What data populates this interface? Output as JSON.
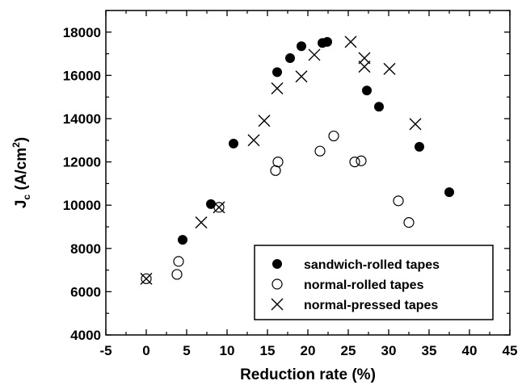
{
  "chart_data": {
    "type": "scatter",
    "title": "",
    "xlabel": "Reduction rate (%)",
    "ylabel": {
      "main": "J",
      "sub": "c",
      "open": " (A/cm",
      "sup": "2",
      "close": ")"
    },
    "xlim": [
      -5,
      45
    ],
    "ylim": [
      4000,
      19000
    ],
    "x_ticks": [
      -5,
      0,
      5,
      10,
      15,
      20,
      25,
      30,
      35,
      40,
      45
    ],
    "y_ticks": [
      4000,
      6000,
      8000,
      10000,
      12000,
      14000,
      16000,
      18000
    ],
    "grid": false,
    "legend_position": "bottom-right",
    "series": [
      {
        "name": "sandwich-rolled tapes",
        "marker": "filled-circle",
        "points": [
          [
            4.5,
            8400
          ],
          [
            8.0,
            10050
          ],
          [
            10.8,
            12850
          ],
          [
            16.2,
            16150
          ],
          [
            17.8,
            16800
          ],
          [
            19.2,
            17350
          ],
          [
            21.8,
            17500
          ],
          [
            22.4,
            17550
          ],
          [
            27.3,
            15300
          ],
          [
            28.8,
            14550
          ],
          [
            33.8,
            12700
          ],
          [
            37.5,
            10600
          ]
        ]
      },
      {
        "name": "normal-rolled tapes",
        "marker": "open-circle",
        "points": [
          [
            0,
            6600
          ],
          [
            3.8,
            6800
          ],
          [
            4.0,
            7400
          ],
          [
            9.0,
            9900
          ],
          [
            16.0,
            11600
          ],
          [
            16.3,
            12000
          ],
          [
            21.5,
            12500
          ],
          [
            23.2,
            13200
          ],
          [
            25.8,
            12000
          ],
          [
            26.6,
            12050
          ],
          [
            31.2,
            10200
          ],
          [
            32.5,
            9200
          ]
        ]
      },
      {
        "name": "normal-pressed tapes",
        "marker": "cross",
        "points": [
          [
            0,
            6600
          ],
          [
            6.8,
            9200
          ],
          [
            9.0,
            9900
          ],
          [
            13.3,
            13000
          ],
          [
            14.6,
            13900
          ],
          [
            16.2,
            15400
          ],
          [
            19.2,
            15950
          ],
          [
            20.8,
            16950
          ],
          [
            25.3,
            17550
          ],
          [
            27.0,
            16800
          ],
          [
            27.0,
            16400
          ],
          [
            30.1,
            16300
          ],
          [
            33.3,
            13750
          ]
        ]
      }
    ]
  }
}
